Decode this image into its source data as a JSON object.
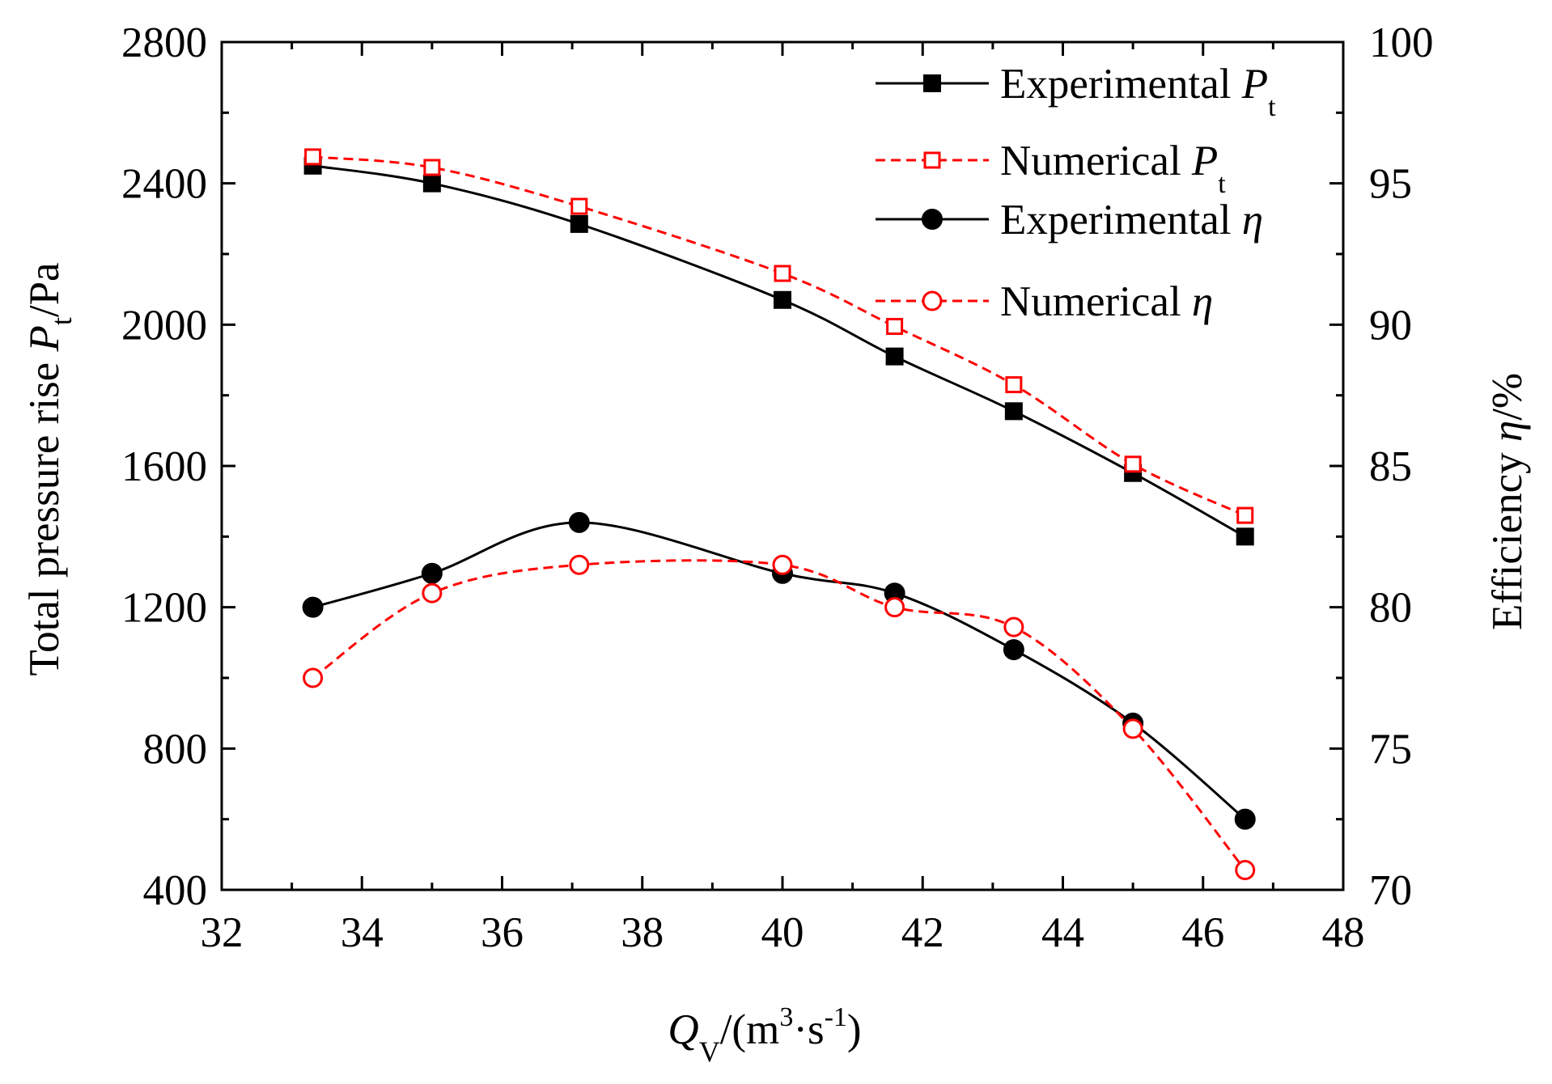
{
  "chart_data": {
    "type": "line",
    "x_axis": {
      "label": "Q",
      "label_sub": "V",
      "label_unit": "/(m·s)",
      "unit_parts": [
        "/(m",
        "3",
        "·s",
        "-1",
        ")"
      ],
      "range": [
        32,
        48
      ],
      "ticks": [
        32,
        34,
        36,
        38,
        40,
        42,
        44,
        46,
        48
      ]
    },
    "y_left": {
      "label": "Total pressure rise P/Pa",
      "label_parts": [
        "Total pressure rise ",
        "P",
        "t",
        "/Pa"
      ],
      "range": [
        400,
        2800
      ],
      "ticks": [
        400,
        800,
        1200,
        1600,
        2000,
        2400,
        2800
      ]
    },
    "y_right": {
      "label": "Efficiency η/%",
      "label_parts": [
        "Efficiency ",
        "η",
        "/%"
      ],
      "range": [
        70,
        100
      ],
      "ticks": [
        70,
        75,
        80,
        85,
        90,
        95,
        100
      ]
    },
    "series": [
      {
        "name": "Experimental Pt",
        "label": "Experimental ",
        "symbol": "P",
        "sub": "t",
        "axis": "left",
        "marker": "square-filled",
        "line": "solid",
        "color": "#000000",
        "x": [
          33.3,
          35.0,
          37.1,
          40.0,
          41.6,
          43.3,
          45.0,
          46.6
        ],
        "y": [
          2450,
          2400,
          2285,
          2070,
          1910,
          1755,
          1580,
          1400
        ]
      },
      {
        "name": "Numerical Pt",
        "label": "Numerical ",
        "symbol": "P",
        "sub": "t",
        "axis": "left",
        "marker": "square-open",
        "line": "dashed",
        "color": "#ff0000",
        "x": [
          33.3,
          35.0,
          37.1,
          40.0,
          41.6,
          43.3,
          45.0,
          46.6
        ],
        "y": [
          2475,
          2445,
          2335,
          2145,
          1995,
          1830,
          1605,
          1460
        ]
      },
      {
        "name": "Experimental η",
        "label": "Experimental ",
        "symbol": "η",
        "sub": "",
        "axis": "right",
        "marker": "circle-filled",
        "line": "solid",
        "color": "#000000",
        "x": [
          33.3,
          35.0,
          37.1,
          40.0,
          41.6,
          43.3,
          45.0,
          46.6
        ],
        "y": [
          80.0,
          81.2,
          83.0,
          81.2,
          80.5,
          78.5,
          75.9,
          72.5
        ]
      },
      {
        "name": "Numerical η",
        "label": "Numerical ",
        "symbol": "η",
        "sub": "",
        "axis": "right",
        "marker": "circle-open",
        "line": "dashed",
        "color": "#ff0000",
        "x": [
          33.3,
          35.0,
          37.1,
          40.0,
          41.6,
          43.3,
          45.0,
          46.6
        ],
        "y": [
          77.5,
          80.5,
          81.5,
          81.5,
          80.0,
          79.3,
          75.7,
          70.7
        ]
      }
    ],
    "legend_position": "top-right",
    "grid": false
  }
}
